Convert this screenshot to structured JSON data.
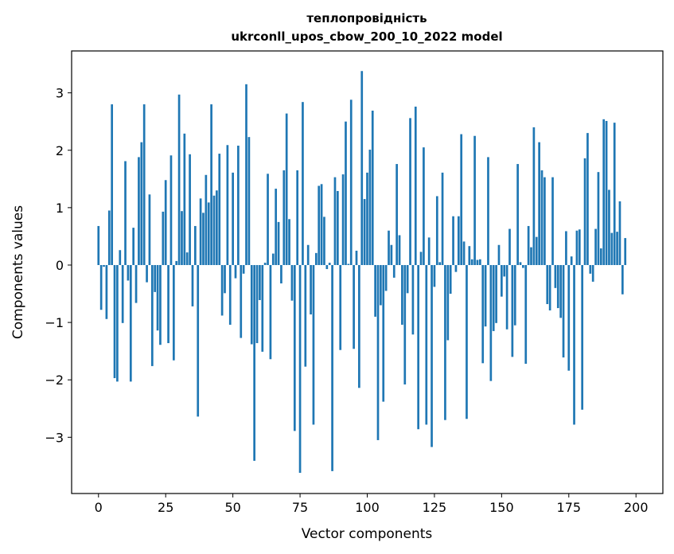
{
  "chart_data": {
    "type": "bar",
    "title_line1": "теплопровідність",
    "title_line2": "ukrconll_upos_cbow_200_10_2022 model",
    "xlabel": "Vector components",
    "ylabel": "Components values",
    "xlim": [
      -10,
      210
    ],
    "ylim": [
      -3.98,
      3.73
    ],
    "xticks": [
      0,
      25,
      50,
      75,
      100,
      125,
      150,
      175,
      200
    ],
    "yticks": [
      -3,
      -2,
      -1,
      0,
      1,
      2,
      3
    ],
    "grid": false,
    "bar_color": "#1f77b4",
    "values": [
      0.68,
      -0.78,
      -0.03,
      -0.94,
      0.95,
      2.8,
      -1.97,
      -2.03,
      0.26,
      -1.01,
      1.81,
      -0.27,
      -2.03,
      0.65,
      -0.66,
      1.88,
      2.14,
      2.8,
      -0.3,
      1.23,
      -1.76,
      -0.47,
      -1.14,
      -1.39,
      0.93,
      1.48,
      -1.36,
      1.91,
      -1.66,
      0.07,
      2.97,
      0.94,
      2.29,
      0.22,
      1.93,
      -0.72,
      0.68,
      -2.64,
      1.16,
      0.91,
      1.57,
      1.09,
      2.8,
      1.21,
      1.3,
      1.94,
      -0.88,
      -0.49,
      2.09,
      -1.04,
      1.61,
      -0.23,
      2.08,
      -1.27,
      -0.15,
      3.15,
      2.23,
      -1.38,
      -3.41,
      -1.36,
      -0.61,
      -1.51,
      0.04,
      1.59,
      -1.64,
      0.2,
      1.33,
      0.75,
      -0.32,
      1.65,
      2.64,
      0.8,
      -0.62,
      -2.89,
      1.65,
      -3.62,
      2.84,
      -1.77,
      0.35,
      -0.86,
      -2.78,
      0.21,
      1.38,
      1.41,
      0.84,
      -0.07,
      0.04,
      -3.59,
      1.53,
      1.29,
      -1.48,
      1.58,
      2.5,
      0.02,
      2.88,
      -1.46,
      0.25,
      -2.14,
      3.38,
      1.15,
      1.61,
      2.01,
      2.69,
      -0.9,
      -3.05,
      -0.7,
      -2.38,
      -0.45,
      0.6,
      0.35,
      -0.22,
      1.76,
      0.52,
      -1.04,
      -2.08,
      -0.49,
      2.56,
      -1.21,
      2.76,
      -2.86,
      0.23,
      2.05,
      -2.78,
      0.48,
      -3.17,
      -0.38,
      1.2,
      0.05,
      1.61,
      -2.7,
      -1.31,
      -0.5,
      0.85,
      -0.12,
      0.85,
      2.28,
      0.41,
      -2.68,
      0.33,
      0.1,
      2.25,
      0.09,
      0.1,
      -1.71,
      -1.07,
      1.88,
      -2.02,
      -1.15,
      -1.01,
      0.35,
      -0.55,
      -0.2,
      -1.12,
      0.63,
      -1.6,
      -1.05,
      1.76,
      0.05,
      -0.05,
      -1.72,
      0.68,
      0.31,
      2.4,
      0.49,
      2.14,
      1.65,
      1.53,
      -0.68,
      -0.79,
      1.53,
      -0.4,
      -0.75,
      -0.92,
      -1.61,
      0.59,
      -1.84,
      0.15,
      -2.78,
      0.6,
      0.62,
      -2.52,
      1.86,
      2.3,
      -0.15,
      -0.29,
      0.63,
      1.62,
      0.29,
      2.54,
      2.51,
      1.31,
      0.56,
      2.48,
      0.58,
      1.11,
      -0.51,
      0.47
    ]
  }
}
